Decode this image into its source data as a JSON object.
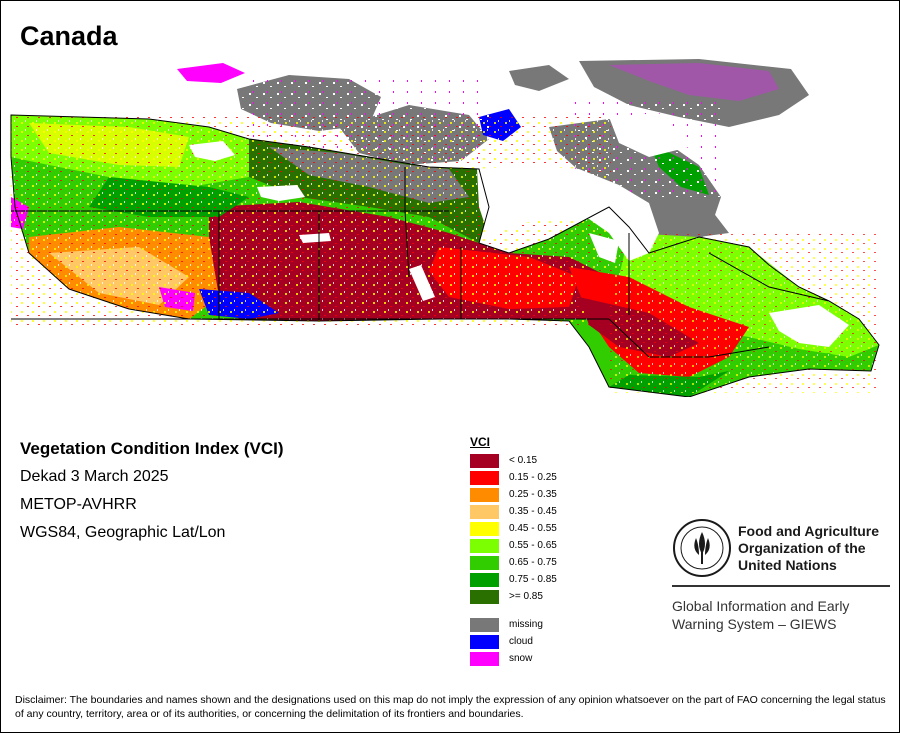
{
  "map": {
    "title": "Canada"
  },
  "info": {
    "heading": "Vegetation Condition Index (VCI)",
    "period": "Dekad 3 March 2025",
    "sensor": "METOP-AVHRR",
    "projection": "WGS84, Geographic Lat/Lon"
  },
  "legend": {
    "title": "VCI",
    "classes": [
      {
        "label": "< 0.15",
        "color": "#a50021"
      },
      {
        "label": "0.15 - 0.25",
        "color": "#ff0000"
      },
      {
        "label": "0.25 - 0.35",
        "color": "#ff8c00"
      },
      {
        "label": "0.35 - 0.45",
        "color": "#ffc864"
      },
      {
        "label": "0.45 - 0.55",
        "color": "#ffff00"
      },
      {
        "label": "0.55 - 0.65",
        "color": "#7cff00"
      },
      {
        "label": "0.65 - 0.75",
        "color": "#32cd00"
      },
      {
        "label": "0.75 - 0.85",
        "color": "#00a000"
      },
      {
        "label": ">= 0.85",
        "color": "#2a7000"
      }
    ],
    "special": [
      {
        "label": "missing",
        "color": "#787878"
      },
      {
        "label": "cloud",
        "color": "#0000ff"
      },
      {
        "label": "snow",
        "color": "#ff00ff"
      }
    ]
  },
  "organization": {
    "name_line1": "Food and Agriculture",
    "name_line2": "Organization of the",
    "name_line3": "United Nations",
    "system_line1": "Global Information and Early",
    "system_line2": "Warning System – GIEWS"
  },
  "disclaimer": "Disclaimer: The boundaries and names shown and the designations used on this map do not imply the expression of any opinion whatsoever on the part of FAO concerning the legal status of any country, territory, area or of its authorities, or concerning the delimitation of its frontiers and boundaries.",
  "colors": {
    "water": "#ffffff",
    "border": "#000000"
  }
}
